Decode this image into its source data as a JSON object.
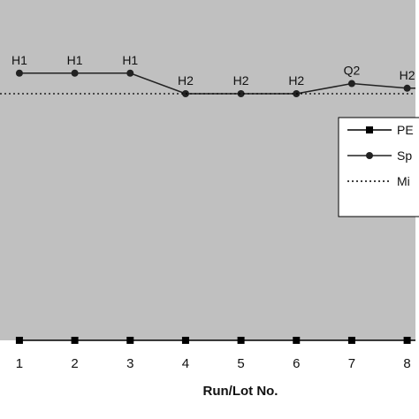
{
  "chart_data": {
    "type": "line",
    "title": "",
    "xlabel": "Run/Lot No.",
    "ylabel": "",
    "categories": [
      "1",
      "2",
      "3",
      "4",
      "5",
      "6",
      "7",
      "8"
    ],
    "x": [
      1,
      2,
      3,
      4,
      5,
      6,
      7,
      8
    ],
    "xlim": [
      0.65,
      8.15
    ],
    "ylim": [
      0,
      1.0
    ],
    "grid": false,
    "background": "#c0c0c0",
    "series": [
      {
        "name": "PE",
        "marker": "square",
        "line": "solid",
        "color": "#000000",
        "values": [
          0,
          0,
          0,
          0,
          0,
          0,
          0,
          0
        ]
      },
      {
        "name": "Sp",
        "marker": "circle",
        "line": "solid",
        "color": "#222222",
        "values": [
          0.975,
          0.975,
          0.975,
          0.9,
          0.9,
          0.9,
          0.937,
          0.92
        ],
        "point_labels": [
          "H1",
          "H1",
          "H1",
          "H2",
          "H2",
          "H2",
          "Q2",
          "H2"
        ]
      },
      {
        "name": "Mi",
        "marker": "none",
        "line": "dotted",
        "color": "#000000",
        "values": [
          0.9,
          0.9,
          0.9,
          0.9,
          0.9,
          0.9,
          0.9,
          0.9
        ]
      }
    ],
    "legend": {
      "placement": "right",
      "entries": [
        "PE",
        "Sp",
        "Mi"
      ]
    }
  }
}
